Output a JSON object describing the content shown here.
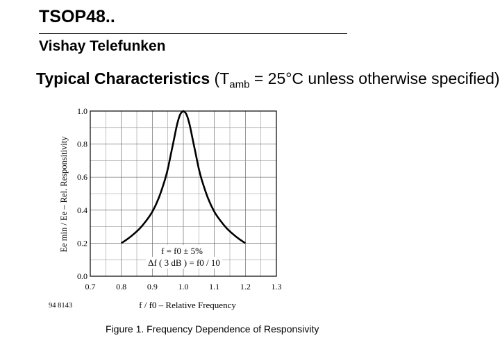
{
  "header": {
    "title": "TSOP48..",
    "subtitle": "Vishay Telefunken",
    "section_title": "Typical Characteristics",
    "condition_prefix": "(T",
    "condition_subscript": "amb",
    "condition_suffix": " = 25°C unless otherwise specified)"
  },
  "figure": {
    "id": "94 8143",
    "caption": "Figure 1.  Frequency Dependence of Responsivity"
  },
  "chart_data": {
    "type": "line",
    "xlabel": "f / f0 – Relative Frequency",
    "ylabel": "Ee min / Ee – Rel. Responsitivity",
    "xlim": [
      0.7,
      1.3
    ],
    "ylim": [
      0.0,
      1.0
    ],
    "x_ticks": [
      "0.7",
      "0.8",
      "0.9",
      "1.0",
      "1.1",
      "1.2",
      "1.3"
    ],
    "y_ticks": [
      "0.0",
      "0.2",
      "0.4",
      "0.6",
      "0.8",
      "1.0"
    ],
    "grid": true,
    "annotations": [
      "f = f0 ± 5%",
      "Δf ( 3 dB ) = f0 / 10"
    ],
    "series": [
      {
        "x": [
          0.8,
          0.82,
          0.84,
          0.86,
          0.88,
          0.9,
          0.92,
          0.94,
          0.95,
          0.96,
          0.97,
          0.98,
          0.99,
          1.0,
          1.01,
          1.02,
          1.03,
          1.04,
          1.05,
          1.06,
          1.08,
          1.1,
          1.12,
          1.14,
          1.16,
          1.18,
          1.2
        ],
        "y": [
          0.2,
          0.225,
          0.255,
          0.29,
          0.335,
          0.39,
          0.47,
          0.58,
          0.65,
          0.74,
          0.83,
          0.92,
          0.98,
          1.0,
          0.98,
          0.92,
          0.83,
          0.74,
          0.65,
          0.58,
          0.47,
          0.39,
          0.335,
          0.29,
          0.255,
          0.225,
          0.2
        ]
      }
    ]
  }
}
